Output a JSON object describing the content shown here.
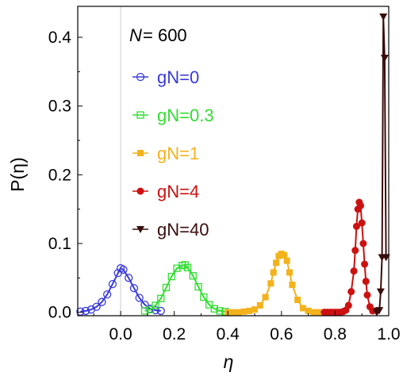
{
  "chart_data": {
    "type": "line",
    "xlabel": "η",
    "ylabel": "P(η)",
    "xlim": [
      -0.16,
      1.0
    ],
    "ylim": [
      -0.005,
      0.445
    ],
    "x_ticks": [
      0.0,
      0.2,
      0.4,
      0.6,
      0.8,
      1.0
    ],
    "x_tick_labels": [
      "0.0",
      "0.2",
      "0.4",
      "0.6",
      "0.8",
      "1.0"
    ],
    "y_ticks": [
      0.0,
      0.1,
      0.2,
      0.3,
      0.4
    ],
    "y_tick_labels": [
      "0.0",
      "0.1",
      "0.2",
      "0.3",
      "0.4"
    ],
    "annotation": {
      "var": "N",
      "eq": " = 600"
    },
    "legend_position": "top-center",
    "grid": false,
    "zero_line": true,
    "series": [
      {
        "name": "gN=0",
        "color": "#3a3adb",
        "marker": "circle-open",
        "x": [
          -0.15,
          -0.13,
          -0.11,
          -0.09,
          -0.07,
          -0.05,
          -0.03,
          -0.01,
          0.0,
          0.01,
          0.03,
          0.05,
          0.07,
          0.09,
          0.11,
          0.13,
          0.15
        ],
        "y": [
          0.001,
          0.002,
          0.004,
          0.008,
          0.015,
          0.026,
          0.041,
          0.057,
          0.064,
          0.062,
          0.05,
          0.035,
          0.021,
          0.011,
          0.005,
          0.003,
          0.002
        ]
      },
      {
        "name": "gN=0.3",
        "color": "#33dd33",
        "marker": "square-open",
        "x": [
          0.09,
          0.11,
          0.13,
          0.15,
          0.17,
          0.19,
          0.21,
          0.23,
          0.24,
          0.25,
          0.27,
          0.29,
          0.31,
          0.33,
          0.35,
          0.37,
          0.39
        ],
        "y": [
          0.002,
          0.004,
          0.01,
          0.02,
          0.036,
          0.052,
          0.064,
          0.068,
          0.069,
          0.065,
          0.053,
          0.037,
          0.022,
          0.011,
          0.005,
          0.002,
          0.001
        ]
      },
      {
        "name": "gN=1",
        "color": "#f3b21c",
        "marker": "square",
        "x": [
          0.4,
          0.42,
          0.44,
          0.46,
          0.48,
          0.5,
          0.52,
          0.54,
          0.56,
          0.57,
          0.58,
          0.59,
          0.6,
          0.61,
          0.62,
          0.63,
          0.64,
          0.66,
          0.68,
          0.7,
          0.72,
          0.74,
          0.76
        ],
        "y": [
          0.0,
          0.0,
          0.0,
          0.001,
          0.002,
          0.004,
          0.01,
          0.022,
          0.042,
          0.058,
          0.072,
          0.082,
          0.085,
          0.083,
          0.075,
          0.058,
          0.04,
          0.018,
          0.006,
          0.002,
          0.0,
          0.0,
          0.0
        ]
      },
      {
        "name": "gN=4",
        "color": "#cc1111",
        "marker": "circle",
        "x": [
          0.76,
          0.77,
          0.78,
          0.79,
          0.8,
          0.81,
          0.82,
          0.83,
          0.84,
          0.85,
          0.86,
          0.87,
          0.875,
          0.88,
          0.885,
          0.89,
          0.895,
          0.9,
          0.905,
          0.91,
          0.915,
          0.92,
          0.93,
          0.94
        ],
        "y": [
          0.0,
          0.0,
          0.0,
          0.0,
          0.0,
          0.0,
          0.0,
          0.001,
          0.003,
          0.01,
          0.03,
          0.06,
          0.09,
          0.125,
          0.15,
          0.16,
          0.155,
          0.13,
          0.1,
          0.07,
          0.045,
          0.025,
          0.008,
          0.002
        ]
      },
      {
        "name": "gN=40",
        "color": "#3a0d0d",
        "marker": "triangle-down",
        "x": [
          0.955,
          0.96,
          0.965,
          0.97,
          0.975,
          0.98,
          0.985,
          0.99
        ],
        "y": [
          0.0,
          0.002,
          0.003,
          0.03,
          0.08,
          0.43,
          0.37,
          0.08
        ]
      }
    ]
  }
}
